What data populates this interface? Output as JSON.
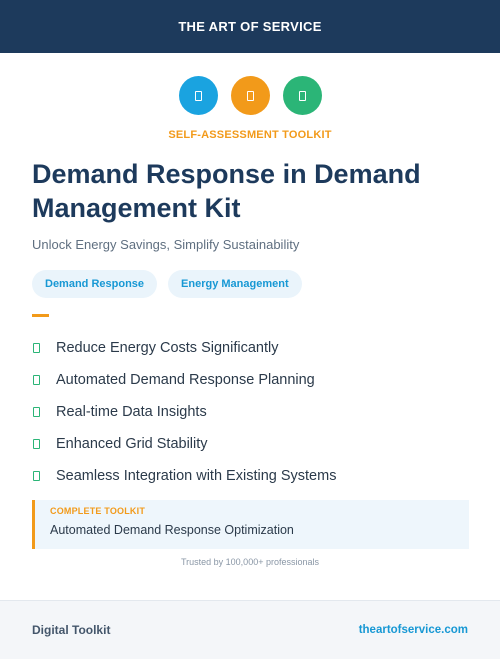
{
  "header": {
    "brand": "THE ART OF SERVICE"
  },
  "icons": [
    {
      "name": "document-icon",
      "color": "#1aa3e0"
    },
    {
      "name": "document-icon",
      "color": "#f29a1a"
    },
    {
      "name": "document-icon",
      "color": "#2bb577"
    }
  ],
  "kicker": "SELF-ASSESSMENT TOOLKIT",
  "title": "Demand Response in Demand Management Kit",
  "subtitle": "Unlock Energy Savings, Simplify Sustainability",
  "tags": [
    "Demand Response",
    "Energy Management"
  ],
  "features": [
    "Reduce Energy Costs Significantly",
    "Automated Demand Response Planning",
    "Real-time Data Insights",
    "Enhanced Grid Stability",
    "Seamless Integration with Existing Systems"
  ],
  "toolkit": {
    "label": "COMPLETE TOOLKIT",
    "value": "Automated Demand Response Optimization"
  },
  "trust": "Trusted by 100,000+ professionals",
  "footer": {
    "left": "Digital Toolkit",
    "right": "theartofservice.com"
  },
  "colors": {
    "navy": "#1d3a5c",
    "accent_orange": "#f29a1a",
    "accent_blue": "#1798d4",
    "accent_green": "#2bb577"
  }
}
